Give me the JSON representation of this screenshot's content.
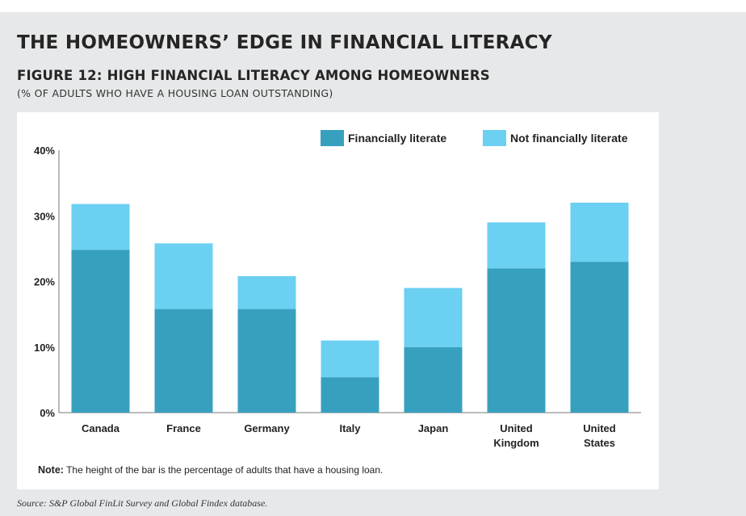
{
  "page": {
    "section_title": "THE HOMEOWNERS’ EDGE IN FINANCIAL LITERACY",
    "figure_title": "FIGURE 12: HIGH FINANCIAL LITERACY AMONG HOMEOWNERS",
    "figure_subtitle": "(% OF ADULTS WHO HAVE A HOUSING LOAN OUTSTANDING)",
    "note_label": "Note:",
    "note_text": " The height of the bar is the percentage of adults that have a housing loan.",
    "source": "Source: S&P Global FinLit Survey and Global Findex database."
  },
  "chart_data": {
    "type": "bar",
    "stacked": true,
    "categories": [
      [
        "Canada"
      ],
      [
        "France"
      ],
      [
        "Germany"
      ],
      [
        "Italy"
      ],
      [
        "Japan"
      ],
      [
        "United",
        "Kingdom"
      ],
      [
        "United",
        "States"
      ]
    ],
    "series": [
      {
        "name": "Financially literate",
        "color": "#38a0bf",
        "values": [
          24.8,
          15.8,
          15.8,
          5.4,
          10,
          22,
          23
        ]
      },
      {
        "name": "Not financially literate",
        "color": "#6bd0f2",
        "values": [
          7,
          10,
          5,
          5.6,
          9,
          7,
          9
        ]
      }
    ],
    "yticks": [
      "0%",
      "10%",
      "20%",
      "30%",
      "40%"
    ],
    "ylim": [
      0,
      40
    ],
    "legend_position": "top-right",
    "grid": false
  }
}
